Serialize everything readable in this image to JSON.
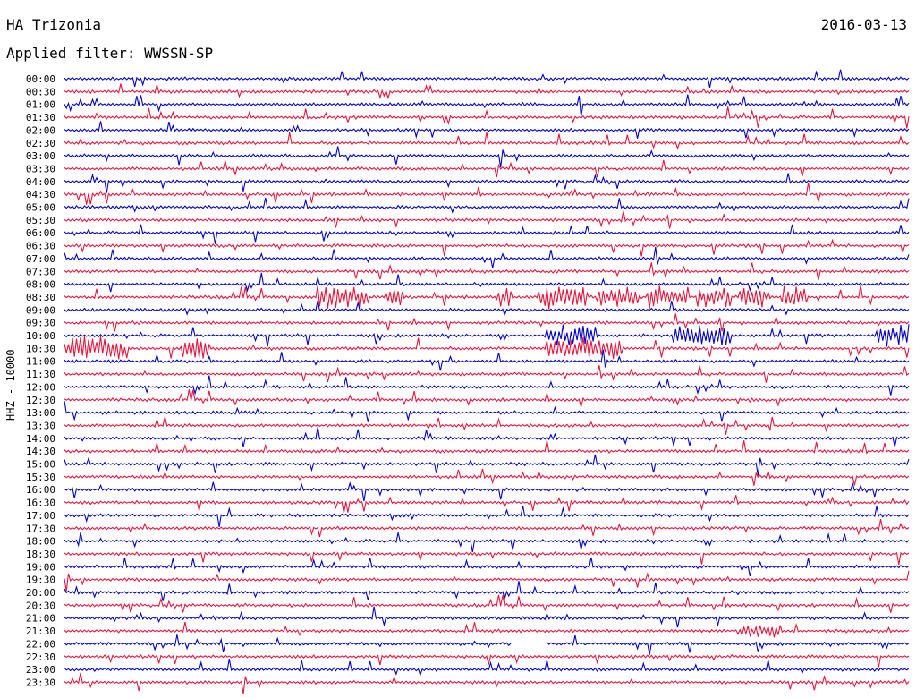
{
  "header": {
    "station": "HA Trizonia",
    "date": "2016-03-13",
    "filter": "Applied filter: WWSSN-SP"
  },
  "chart_data": {
    "type": "line",
    "title": "HA Trizonia",
    "ylabel": "HHZ - 10000",
    "rows": [
      "00:00",
      "00:30",
      "01:00",
      "01:30",
      "02:00",
      "02:30",
      "03:00",
      "03:30",
      "04:00",
      "04:30",
      "05:00",
      "05:30",
      "06:00",
      "06:30",
      "07:00",
      "07:30",
      "08:00",
      "08:30",
      "09:00",
      "09:30",
      "10:00",
      "10:30",
      "11:00",
      "11:30",
      "12:00",
      "12:30",
      "13:00",
      "13:30",
      "14:00",
      "14:30",
      "15:00",
      "15:30",
      "16:00",
      "16:30",
      "17:00",
      "17:30",
      "18:00",
      "18:30",
      "19:00",
      "19:30",
      "20:00",
      "20:30",
      "21:00",
      "21:30",
      "22:00",
      "22:30",
      "23:00",
      "23:30"
    ],
    "row_duration_minutes": 30,
    "series_colors": [
      "#0000cc",
      "#e8143c"
    ],
    "data_gap": {
      "row": "22:00",
      "from_fraction": 0.53,
      "to_fraction": 0.57
    },
    "notable_events": [
      {
        "row": "08:30",
        "description": "burst"
      },
      {
        "row": "10:00",
        "description": "burst"
      },
      {
        "row": "10:30",
        "description": "burst"
      },
      {
        "row": "21:30",
        "description": "earthquake signal"
      }
    ]
  }
}
